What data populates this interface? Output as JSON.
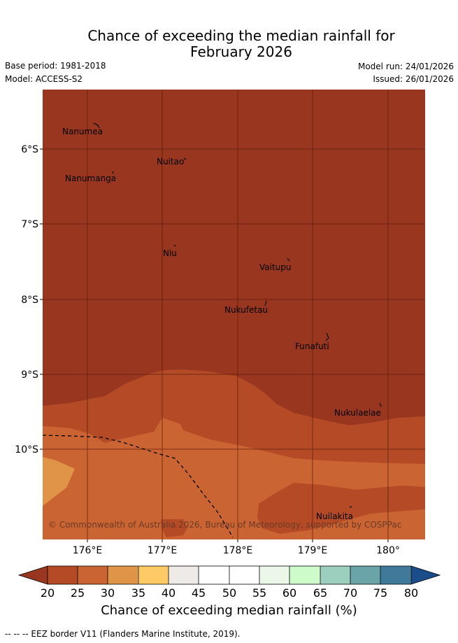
{
  "header": {
    "title_line1": "Chance of exceeding the median rainfall for",
    "title_line2": "February 2026",
    "base_period": "Base period: 1981-2018",
    "model": "Model: ACCESS-S2",
    "model_run": "Model run: 24/01/2026",
    "issued": "Issued: 26/01/2026"
  },
  "map": {
    "longitude_ticks": [
      "176°E",
      "177°E",
      "178°E",
      "179°E",
      "180°"
    ],
    "latitude_ticks": [
      "6°S",
      "7°S",
      "8°S",
      "9°S",
      "10°S"
    ],
    "places": [
      "Nanumea",
      "Nuitao",
      "Nanumanga",
      "Niu",
      "Vaitupu",
      "Nukufetau",
      "Funafuti",
      "Nukulaelae",
      "Nuilakita"
    ],
    "copyright": "© Commonwealth of Australia 2026, Bureau of Meteorology, supported by COSPPac",
    "colors": {
      "below_20": "#98361f",
      "20_25": "#b44b26",
      "25_30": "#cb6433",
      "30_35": "#e09447",
      "35_40": "#fdca66",
      "40_45": "#eeeae7",
      "45_50": "#ffffff",
      "50_55": "#ffffff",
      "55_60": "#eaf7e9",
      "60_65": "#cdfcca",
      "65_70": "#9ccfbd",
      "70_75": "#6aa4a8",
      "75_80": "#3f7a9b",
      "above_80": "#1a4d8a"
    }
  },
  "colorbar": {
    "tick_labels": [
      "20",
      "25",
      "30",
      "35",
      "40",
      "45",
      "50",
      "55",
      "60",
      "65",
      "70",
      "75",
      "80"
    ],
    "title": "Chance of exceeding median rainfall (%)"
  },
  "footnote": "-- -- -- EEZ border V11 (Flanders Marine Institute, 2019)."
}
